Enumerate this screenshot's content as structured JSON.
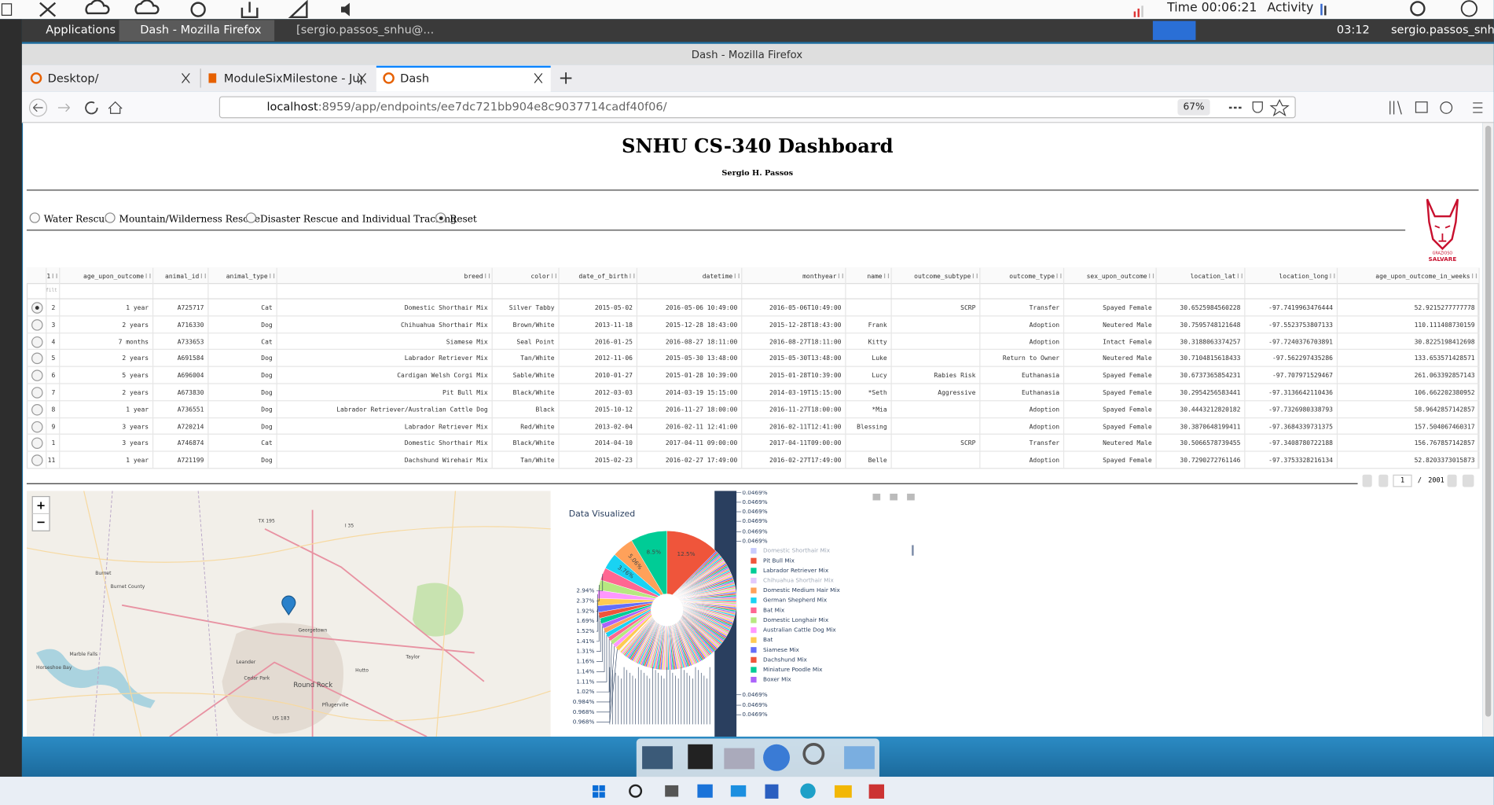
{
  "desktop": {
    "time": "Time 00:06:21",
    "activity": "Activity"
  },
  "taskbar": {
    "applications": "Applications",
    "windows": [
      "Dash - Mozilla Firefox",
      "[sergio.passos_snhu@..."
    ],
    "clock": "03:12",
    "user": "sergio.passos_snhu"
  },
  "browser": {
    "window_title": "Dash - Mozilla Firefox",
    "tabs": [
      "Desktop/",
      "ModuleSixMilestone - Jup",
      "Dash"
    ],
    "url_host": "localhost",
    "url_path": ":8959/app/endpoints/ee7dc721bb904e8c9037714cadf40f06/",
    "zoom": "67%"
  },
  "header": {
    "title": "SNHU CS-340 Dashboard",
    "author": "Sergio H. Passos"
  },
  "logo": [
    "GRAZIOSO",
    "SALVARE"
  ],
  "filters": {
    "options": [
      "Water Rescue",
      "Mountain/Wilderness Rescue",
      "Disaster Rescue and Individual Tracking",
      "Reset"
    ],
    "selected": 3
  },
  "table": {
    "columns": [
      "1",
      "age_upon_outcome",
      "animal_id",
      "animal_type",
      "breed",
      "color",
      "date_of_birth",
      "datetime",
      "monthyear",
      "name",
      "outcome_subtype",
      "outcome_type",
      "sex_upon_outcome",
      "location_lat",
      "location_long",
      "age_upon_outcome_in_weeks"
    ],
    "filter_placeholder": "filt",
    "selected_row": 0,
    "rows": [
      [
        "2",
        "1 year",
        "A725717",
        "Cat",
        "Domestic Shorthair Mix",
        "Silver Tabby",
        "2015-05-02",
        "2016-05-06 10:49:00",
        "2016-05-06T10:49:00",
        null,
        "SCRP",
        "Transfer",
        "Spayed Female",
        "30.6525984560228",
        "-97.7419963476444",
        "52.9215277777778"
      ],
      [
        "3",
        "2 years",
        "A716330",
        "Dog",
        "Chihuahua Shorthair Mix",
        "Brown/White",
        "2013-11-18",
        "2015-12-28 18:43:00",
        "2015-12-28T18:43:00",
        "Frank",
        null,
        "Adoption",
        "Neutered Male",
        "30.7595748121648",
        "-97.5523753807133",
        "110.111408730159"
      ],
      [
        "4",
        "7 months",
        "A733653",
        "Cat",
        "Siamese Mix",
        "Seal Point",
        "2016-01-25",
        "2016-08-27 18:11:00",
        "2016-08-27T18:11:00",
        "Kitty",
        null,
        "Adoption",
        "Intact Female",
        "30.3188063374257",
        "-97.7240376703891",
        "30.8225198412698"
      ],
      [
        "5",
        "2 years",
        "A691584",
        "Dog",
        "Labrador Retriever Mix",
        "Tan/White",
        "2012-11-06",
        "2015-05-30 13:48:00",
        "2015-05-30T13:48:00",
        "Luke",
        null,
        "Return to Owner",
        "Neutered Male",
        "30.7104815618433",
        "-97.562297435286",
        "133.653571428571"
      ],
      [
        "6",
        "5 years",
        "A696004",
        "Dog",
        "Cardigan Welsh Corgi Mix",
        "Sable/White",
        "2010-01-27",
        "2015-01-28 10:39:00",
        "2015-01-28T10:39:00",
        "Lucy",
        "Rabies Risk",
        "Euthanasia",
        "Spayed Female",
        "30.6737365854231",
        "-97.707971529467",
        "261.063392857143"
      ],
      [
        "7",
        "2 years",
        "A673830",
        "Dog",
        "Pit Bull Mix",
        "Black/White",
        "2012-03-03",
        "2014-03-19 15:15:00",
        "2014-03-19T15:15:00",
        "*Seth",
        "Aggressive",
        "Euthanasia",
        "Spayed Female",
        "30.2954256583441",
        "-97.3136642110436",
        "106.662202380952"
      ],
      [
        "8",
        "1 year",
        "A736551",
        "Dog",
        "Labrador Retriever/Australian Cattle Dog",
        "Black",
        "2015-10-12",
        "2016-11-27 18:00:00",
        "2016-11-27T18:00:00",
        "*Mia",
        null,
        "Adoption",
        "Spayed Female",
        "30.4443212820182",
        "-97.7326980338793",
        "58.9642857142857"
      ],
      [
        "9",
        "3 years",
        "A720214",
        "Dog",
        "Labrador Retriever Mix",
        "Red/White",
        "2013-02-04",
        "2016-02-11 12:41:00",
        "2016-02-11T12:41:00",
        "Blessing",
        null,
        "Adoption",
        "Spayed Female",
        "30.3870648199411",
        "-97.3684339731375",
        "157.504067460317"
      ],
      [
        "1",
        "3 years",
        "A746874",
        "Cat",
        "Domestic Shorthair Mix",
        "Black/White",
        "2014-04-10",
        "2017-04-11 09:00:00",
        "2017-04-11T09:00:00",
        null,
        "SCRP",
        "Transfer",
        "Neutered Male",
        "30.5066578739455",
        "-97.3408780722188",
        "156.767857142857"
      ],
      [
        "11",
        "1 year",
        "A721199",
        "Dog",
        "Dachshund Wirehair Mix",
        "Tan/White",
        "2015-02-23",
        "2016-02-27 17:49:00",
        "2016-02-27T17:49:00",
        "Belle",
        null,
        "Adoption",
        "Spayed Female",
        "30.7290272761146",
        "-97.3753328216134",
        "52.8203373015873"
      ]
    ]
  },
  "pagination": {
    "page": "1",
    "separator": "/",
    "total": "2001"
  },
  "map": {
    "labels": [
      "Burnet",
      "Burnet County",
      "Marble Falls",
      "Horseshoe Bay",
      "Leander",
      "Cedar Park",
      "Round Rock",
      "Georgetown",
      "Taylor",
      "Hutto",
      "Pflugerville",
      "TX 195",
      "I 35",
      "US 183"
    ],
    "zoom_in": "+",
    "zoom_out": "−"
  },
  "chart": {
    "title": "Data Visualized",
    "legend": [
      {
        "name": "Domestic Shorthair Mix",
        "color": "#636efa",
        "hidden": true
      },
      {
        "name": "Pit Bull Mix",
        "color": "#ef553b",
        "hidden": false
      },
      {
        "name": "Labrador Retriever Mix",
        "color": "#00cc96",
        "hidden": false
      },
      {
        "name": "Chihuahua Shorthair Mix",
        "color": "#ab63fa",
        "hidden": true
      },
      {
        "name": "Domestic Medium Hair Mix",
        "color": "#ffa15a",
        "hidden": false
      },
      {
        "name": "German Shepherd Mix",
        "color": "#19d3f3",
        "hidden": false
      },
      {
        "name": "Bat Mix",
        "color": "#ff6692",
        "hidden": false
      },
      {
        "name": "Domestic Longhair Mix",
        "color": "#b6e880",
        "hidden": false
      },
      {
        "name": "Australian Cattle Dog Mix",
        "color": "#ff97ff",
        "hidden": false
      },
      {
        "name": "Bat",
        "color": "#fecb52",
        "hidden": false
      },
      {
        "name": "Siamese Mix",
        "color": "#636efa",
        "hidden": false
      },
      {
        "name": "Dachshund Mix",
        "color": "#ef553b",
        "hidden": false
      },
      {
        "name": "Miniature Poodle Mix",
        "color": "#00cc96",
        "hidden": false
      },
      {
        "name": "Boxer Mix",
        "color": "#ab63fa",
        "hidden": false
      }
    ],
    "slices": [
      {
        "value": 12.5,
        "label": "12.5%",
        "color": "#ef553b"
      },
      {
        "value": 8.5,
        "label": "8.5%",
        "color": "#00cc96"
      },
      {
        "value": 5.06,
        "label": "5.06%",
        "color": "#ffa15a"
      },
      {
        "value": 3.76,
        "label": "3.76%",
        "color": "#19d3f3"
      },
      {
        "value": 2.94,
        "label": "2.94%",
        "color": "#ff6692"
      },
      {
        "value": 2.37,
        "label": "2.37%",
        "color": "#b6e880"
      },
      {
        "value": 1.92,
        "label": "1.92%",
        "color": "#ff97ff"
      },
      {
        "value": 1.69,
        "label": "1.69%",
        "color": "#fecb52"
      },
      {
        "value": 1.52,
        "label": "1.52%",
        "color": "#636efa"
      },
      {
        "value": 1.41,
        "label": "1.41%",
        "color": "#ef553b"
      },
      {
        "value": 1.31,
        "label": "1.31%",
        "color": "#00cc96"
      },
      {
        "value": 1.16,
        "label": "1.16%",
        "color": "#ab63fa"
      },
      {
        "value": 1.14,
        "label": "1.14%",
        "color": "#ffa15a"
      },
      {
        "value": 1.11,
        "label": "1.11%",
        "color": "#19d3f3"
      },
      {
        "value": 1.02,
        "label": "1.02%",
        "color": "#ff6692"
      },
      {
        "value": 0.984,
        "label": "0.984%",
        "color": "#b6e880"
      },
      {
        "value": 0.968,
        "label": "0.968%",
        "color": "#ff97ff"
      },
      {
        "value": 0.968,
        "label": "0.968%",
        "color": "#fecb52"
      }
    ],
    "small_slices": [
      {
        "value": 0.0469,
        "label": "0.0469%"
      },
      {
        "value": 0.0469,
        "label": "0.0469%"
      },
      {
        "value": 0.0469,
        "label": "0.0469%"
      },
      {
        "value": 0.0469,
        "label": "0.0469%"
      },
      {
        "value": 0.0469,
        "label": "0.0469%"
      },
      {
        "value": 0.0469,
        "label": "0.0469%"
      },
      {
        "value": 0.0469,
        "label": "0.0469%"
      },
      {
        "value": 0.0469,
        "label": "0.0469%"
      },
      {
        "value": 0.0469,
        "label": "0.0469%"
      }
    ]
  }
}
